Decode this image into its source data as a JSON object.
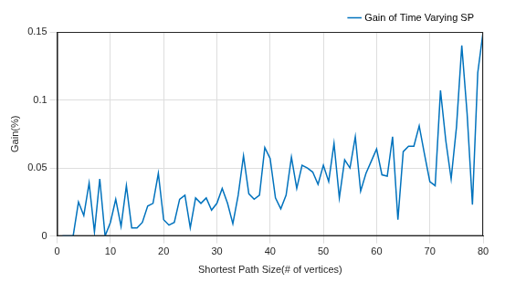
{
  "chart_data": {
    "type": "line",
    "x_label": "Shortest Path Size(# of vertices)",
    "y_label": "Gain(%)",
    "x": [
      1,
      2,
      3,
      4,
      5,
      6,
      7,
      8,
      9,
      10,
      11,
      12,
      13,
      14,
      15,
      16,
      17,
      18,
      19,
      20,
      21,
      22,
      23,
      24,
      25,
      26,
      27,
      28,
      29,
      30,
      31,
      32,
      33,
      34,
      35,
      36,
      37,
      38,
      39,
      40,
      41,
      42,
      43,
      44,
      45,
      46,
      47,
      48,
      49,
      50,
      51,
      52,
      53,
      54,
      55,
      56,
      57,
      58,
      59,
      60,
      61,
      62,
      63,
      64,
      65,
      66,
      67,
      68,
      69,
      70,
      71,
      72,
      73,
      74,
      75,
      76,
      77,
      78,
      79,
      80
    ],
    "series": [
      {
        "name": "Gain of Time Varying SP",
        "color": "#0072bd",
        "values": [
          0,
          0,
          0,
          0.025,
          0.015,
          0.039,
          0.003,
          0.042,
          0,
          0.01,
          0.027,
          0.007,
          0.037,
          0.006,
          0.006,
          0.01,
          0.022,
          0.024,
          0.046,
          0.012,
          0.008,
          0.01,
          0.027,
          0.03,
          0.006,
          0.028,
          0.024,
          0.028,
          0.019,
          0.024,
          0.035,
          0.024,
          0.009,
          0.03,
          0.059,
          0.031,
          0.027,
          0.03,
          0.065,
          0.057,
          0.028,
          0.02,
          0.03,
          0.058,
          0.035,
          0.052,
          0.05,
          0.047,
          0.038,
          0.052,
          0.04,
          0.068,
          0.028,
          0.056,
          0.05,
          0.073,
          0.033,
          0.046,
          0.055,
          0.064,
          0.045,
          0.044,
          0.073,
          0.012,
          0.062,
          0.066,
          0.066,
          0.081,
          0.06,
          0.04,
          0.037,
          0.107,
          0.07,
          0.042,
          0.08,
          0.14,
          0.09,
          0.023,
          0.12,
          0.15
        ]
      }
    ],
    "xlim": [
      0,
      80
    ],
    "xticks": [
      0,
      10,
      20,
      30,
      40,
      50,
      60,
      70,
      80
    ],
    "ylim": [
      0,
      0.15
    ],
    "yticks": [
      0,
      0.05,
      0.1,
      0.15
    ],
    "grid": true,
    "legend": "northeast"
  }
}
